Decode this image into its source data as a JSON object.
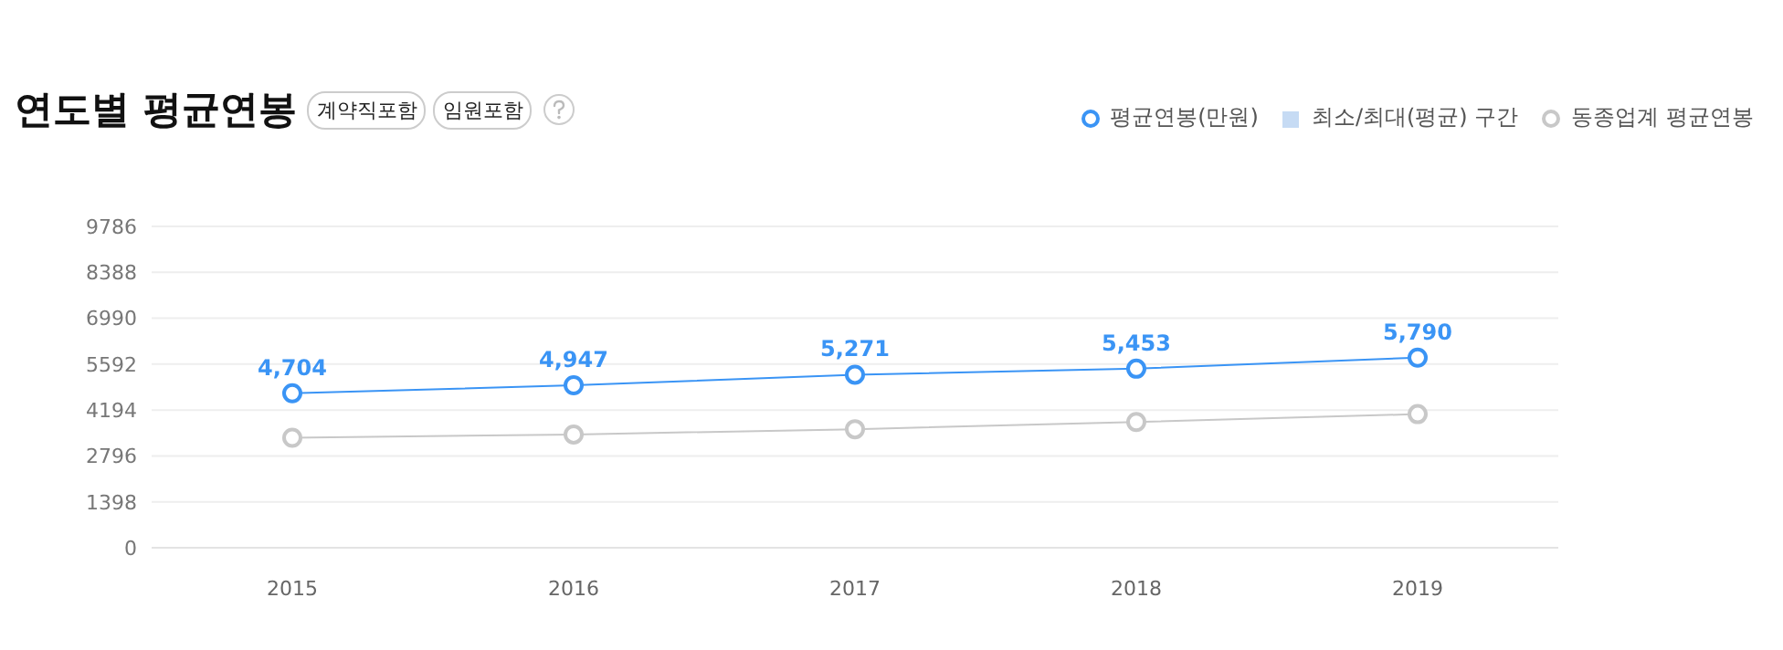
{
  "chart_data": {
    "type": "line",
    "title": "연도별 평균연봉",
    "annotations": [
      "계약직포함",
      "임원포함"
    ],
    "categories": [
      "2015",
      "2016",
      "2017",
      "2018",
      "2019"
    ],
    "series": [
      {
        "name": "평균연봉(만원)",
        "color": "#3a94f5",
        "values": [
          4704,
          4947,
          5271,
          5453,
          5790
        ],
        "value_labels": [
          "4,704",
          "4,947",
          "5,271",
          "5,453",
          "5,790"
        ]
      },
      {
        "name": "최소/최대(평균) 구간",
        "type": "area",
        "color": "#c6dbf4",
        "values": [
          null,
          null,
          null,
          null,
          null
        ]
      },
      {
        "name": "동종업계 평균연봉",
        "color": "#c8c8c8",
        "values": [
          3350,
          3450,
          3610,
          3830,
          4070
        ]
      }
    ],
    "ylim": [
      0,
      9786
    ],
    "yticks": [
      0,
      1398,
      2796,
      4194,
      5592,
      6990,
      8388,
      9786
    ],
    "grid": "y",
    "legend": "top right",
    "marker": "circle",
    "line_style": "solid"
  }
}
